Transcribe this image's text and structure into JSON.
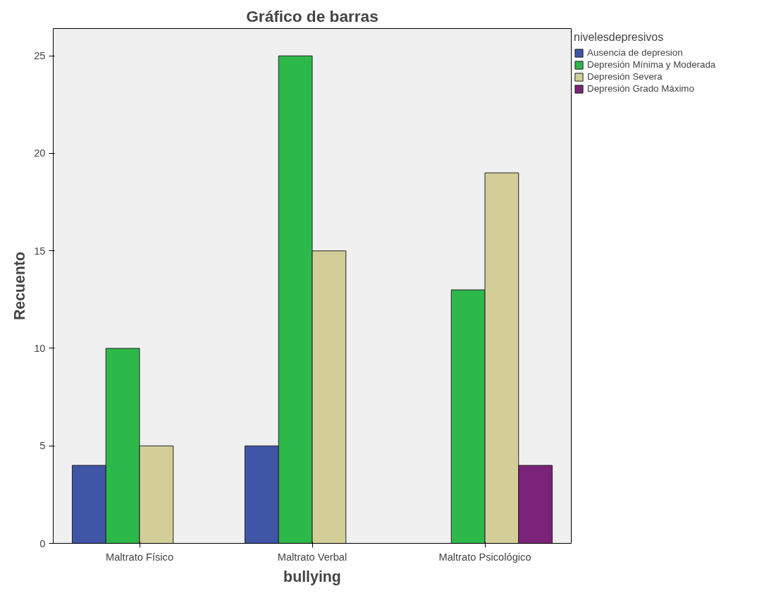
{
  "chart_data": {
    "type": "bar",
    "title": "Gráfico de barras",
    "xlabel": "bullying",
    "ylabel": "Recuento",
    "legend_title": "nivelesdepresivos",
    "categories": [
      "Maltrato Físico",
      "Maltrato Verbal",
      "Maltrato Psicológico"
    ],
    "series": [
      {
        "name": "Ausencia de depresion",
        "color": "#3f56a7",
        "values": [
          4,
          5,
          null
        ]
      },
      {
        "name": "Depresión Mínima y Moderada",
        "color": "#2db84a",
        "values": [
          10,
          25,
          13
        ]
      },
      {
        "name": "Depresión Severa",
        "color": "#d3ce97",
        "values": [
          5,
          15,
          19
        ]
      },
      {
        "name": "Depresión Grado Máximo",
        "color": "#7b2378",
        "values": [
          null,
          null,
          4
        ]
      }
    ],
    "ylim": [
      0,
      26.4
    ],
    "yticks": [
      0,
      5,
      10,
      15,
      20,
      25
    ],
    "grid": false,
    "legend": "top right"
  }
}
